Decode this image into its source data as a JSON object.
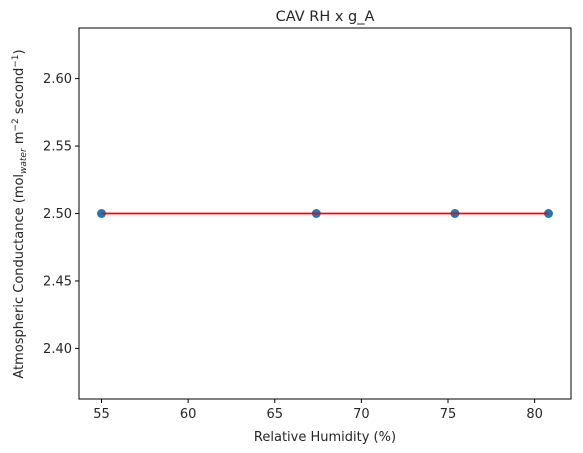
{
  "chart_data": {
    "type": "scatter",
    "title": "CAV RH x g_A",
    "xlabel": "Relative Humidity (%)",
    "ylabel": {
      "prefix": "Atmospheric Conductance (mol",
      "sub1": "water",
      "mid1": " m",
      "sup1": "−2",
      "mid2": " second",
      "sup2": "−1",
      "suffix": ")"
    },
    "xlim": [
      53.7,
      82.1
    ],
    "ylim": [
      2.3625,
      2.6375
    ],
    "xticks": [
      55,
      60,
      65,
      70,
      75,
      80
    ],
    "yticks": [
      2.4,
      2.45,
      2.5,
      2.55,
      2.6
    ],
    "ytick_labels": [
      "2.40",
      "2.45",
      "2.50",
      "2.55",
      "2.60"
    ],
    "grid": false,
    "series": [
      {
        "kind": "points",
        "color": "#1f77b4",
        "x": [
          55.0,
          67.4,
          75.4,
          80.8
        ],
        "y": [
          2.5,
          2.5,
          2.5,
          2.5
        ]
      },
      {
        "kind": "line",
        "color": "#ff0000",
        "x": [
          55.0,
          80.8
        ],
        "y": [
          2.5,
          2.5
        ]
      }
    ]
  }
}
